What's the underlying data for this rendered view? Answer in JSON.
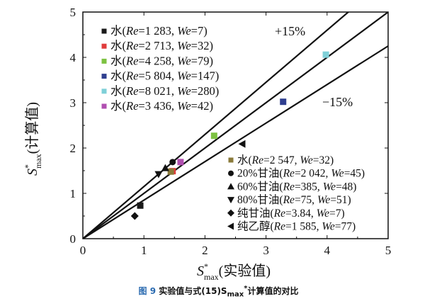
{
  "chart_data": {
    "type": "scatter",
    "xlabel_main": "S",
    "xlabel_sup": "*",
    "xlabel_sub": "max",
    "xlabel_suffix": "(实验值)",
    "ylabel_main": "S",
    "ylabel_sup": "*",
    "ylabel_sub": "max",
    "ylabel_suffix": "(计算值)",
    "xlim": [
      0,
      5
    ],
    "ylim": [
      0,
      5
    ],
    "xticks": [
      "0",
      "1",
      "2",
      "3",
      "4",
      "5"
    ],
    "yticks": [
      "0",
      "1",
      "2",
      "3",
      "4",
      "5"
    ],
    "lines": [
      {
        "slope": 1.15,
        "label": "+15%"
      },
      {
        "slope": 1.0,
        "label": ""
      },
      {
        "slope": 0.85,
        "label": "−15%"
      }
    ],
    "series": [
      {
        "name": "水(Re=1 283, We=7)",
        "prefix": "水(",
        "re": "1 283",
        "we": "7",
        "marker": "square",
        "color": "#1a1a1a",
        "x": [
          0.94
        ],
        "y": [
          0.73
        ]
      },
      {
        "name": "水(Re=2 713, We=32)",
        "prefix": "水(",
        "re": "2 713",
        "we": "32",
        "marker": "square",
        "color": "#e03c3c",
        "x": [
          1.47
        ],
        "y": [
          1.49
        ]
      },
      {
        "name": "水(Re=4 258, We=79)",
        "prefix": "水(",
        "re": "4 258",
        "we": "79",
        "marker": "square",
        "color": "#7dc242",
        "x": [
          2.15
        ],
        "y": [
          2.27
        ]
      },
      {
        "name": "水(Re=5 804, We=147)",
        "prefix": "水(",
        "re": "5 804",
        "we": "147",
        "marker": "square",
        "color": "#2f3f8f",
        "x": [
          3.28
        ],
        "y": [
          3.02
        ]
      },
      {
        "name": "水(Re=8 021, We=280)",
        "prefix": "水(",
        "re": "8 021",
        "we": "280",
        "marker": "square",
        "color": "#7fd0d8",
        "x": [
          3.98
        ],
        "y": [
          4.06
        ]
      },
      {
        "name": "水(Re=3 436, We=42)",
        "prefix": "水(",
        "re": "3 436",
        "we": "42",
        "marker": "square",
        "color": "#b04fb0",
        "x": [
          1.6
        ],
        "y": [
          1.69
        ]
      },
      {
        "name": "水(Re=2 547, We=32)",
        "prefix": "水(",
        "re": "2 547",
        "we": "32",
        "marker": "square",
        "color": "#8a7a3a",
        "x": [
          1.44
        ],
        "y": [
          1.48
        ]
      },
      {
        "name": "20%甘油(Re=2 042, We=45)",
        "prefix": "20%甘油(",
        "re": "2 042",
        "we": "45",
        "marker": "circle",
        "color": "#111111",
        "x": [
          1.47
        ],
        "y": [
          1.69
        ]
      },
      {
        "name": "60%甘油(Re=385, We=48)",
        "prefix": "60%甘油(",
        "re": "385",
        "we": "48",
        "marker": "triangle-up",
        "color": "#111111",
        "x": [
          1.35
        ],
        "y": [
          1.56
        ]
      },
      {
        "name": "80%甘油(Re=75, We=51)",
        "prefix": "80%甘油(",
        "re": "75",
        "we": "51",
        "marker": "triangle-down",
        "color": "#111111",
        "x": [
          1.24
        ],
        "y": [
          1.42
        ]
      },
      {
        "name": "纯甘油(Re=3.84, We=7)",
        "prefix": "纯甘油(",
        "re": "3.84",
        "we": "7",
        "marker": "diamond",
        "color": "#111111",
        "x": [
          0.85
        ],
        "y": [
          0.5
        ]
      },
      {
        "name": "纯乙醇(Re=1 585, We=77)",
        "prefix": "纯乙醇(",
        "re": "1 585",
        "we": "77",
        "marker": "triangle-left",
        "color": "#111111",
        "x": [
          2.61
        ],
        "y": [
          2.09
        ]
      }
    ]
  },
  "caption": {
    "fig": "图 9",
    "text_a": "实验值与式(15)S",
    "sub": "max",
    "sup": "*",
    "text_b": "计算值的对比"
  }
}
